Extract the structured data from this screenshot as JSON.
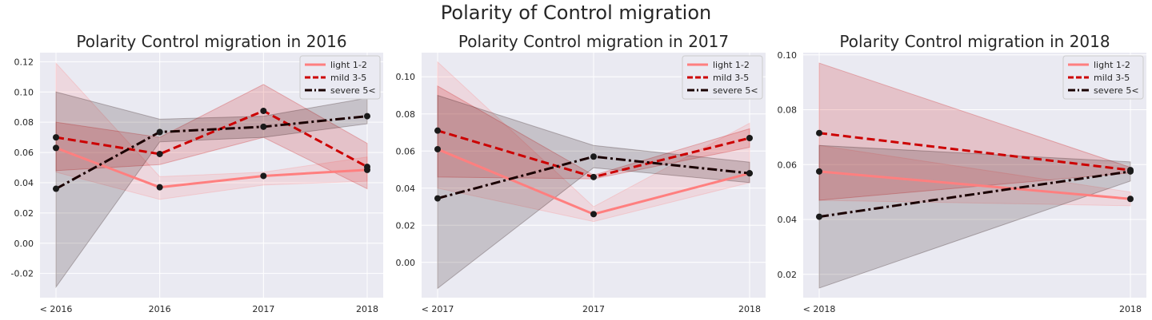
{
  "suptitle": "Polarity of Control migration",
  "style": {
    "axes_bg": "#eaeaf2",
    "grid": "#ffffff",
    "series_colors": {
      "light 1-2": "#ff7f7f",
      "mild 3-5": "#cc0000",
      "severe 5<": "#1a0000"
    },
    "marker_color": "#1a1a1a",
    "line_styles": {
      "light 1-2": "solid",
      "mild 3-5": "dashed",
      "severe 5<": "dashdot"
    },
    "legend_position": "top-right"
  },
  "chart_data": [
    {
      "type": "line",
      "title": "Polarity Control migration in 2016",
      "categories": [
        "< 2016",
        "2016",
        "2017",
        "2018"
      ],
      "ylim": [
        -0.036,
        0.126
      ],
      "yticks": [
        "-0.02",
        "0.00",
        "0.02",
        "0.04",
        "0.06",
        "0.08",
        "0.10",
        "0.12"
      ],
      "series": [
        {
          "name": "light 1-2",
          "values": [
            0.063,
            0.037,
            0.0445,
            0.0485
          ],
          "ci_low": [
            0.047,
            0.029,
            0.0385,
            0.041
          ],
          "ci_high": [
            0.119,
            0.044,
            0.047,
            0.057
          ]
        },
        {
          "name": "mild 3-5",
          "values": [
            0.07,
            0.059,
            0.0875,
            0.0505
          ],
          "ci_low": [
            0.048,
            0.052,
            0.07,
            0.036
          ],
          "ci_high": [
            0.08,
            0.07,
            0.105,
            0.066
          ]
        },
        {
          "name": "severe 5<",
          "values": [
            0.036,
            0.0735,
            0.077,
            0.084
          ],
          "ci_low": [
            -0.029,
            0.067,
            0.07,
            0.079
          ],
          "ci_high": [
            0.1,
            0.082,
            0.084,
            0.096
          ]
        }
      ]
    },
    {
      "type": "line",
      "title": "Polarity Control migration in 2017",
      "categories": [
        "< 2017",
        "2017",
        "2018"
      ],
      "ylim": [
        -0.019,
        0.113
      ],
      "yticks": [
        "0.00",
        "0.02",
        "0.04",
        "0.06",
        "0.08",
        "0.10"
      ],
      "series": [
        {
          "name": "light 1-2",
          "values": [
            0.061,
            0.026,
            0.048
          ],
          "ci_low": [
            0.04,
            0.022,
            0.043
          ],
          "ci_high": [
            0.108,
            0.03,
            0.075
          ]
        },
        {
          "name": "mild 3-5",
          "values": [
            0.071,
            0.046,
            0.067
          ],
          "ci_low": [
            0.046,
            0.045,
            0.062
          ],
          "ci_high": [
            0.095,
            0.047,
            0.072
          ]
        },
        {
          "name": "severe 5<",
          "values": [
            0.0345,
            0.057,
            0.048
          ],
          "ci_low": [
            -0.014,
            0.051,
            0.043
          ],
          "ci_high": [
            0.09,
            0.063,
            0.054
          ]
        }
      ]
    },
    {
      "type": "line",
      "title": "Polarity Control migration in 2018",
      "categories": [
        "< 2018",
        "2018"
      ],
      "ylim": [
        0.0115,
        0.1008
      ],
      "yticks": [
        "0.02",
        "0.04",
        "0.06",
        "0.08",
        "0.10"
      ],
      "series": [
        {
          "name": "light 1-2",
          "values": [
            0.0575,
            0.0475
          ],
          "ci_low": [
            0.047,
            0.045
          ],
          "ci_high": [
            0.067,
            0.05
          ]
        },
        {
          "name": "mild 3-5",
          "values": [
            0.0715,
            0.058
          ],
          "ci_low": [
            0.047,
            0.057
          ],
          "ci_high": [
            0.097,
            0.059
          ]
        },
        {
          "name": "severe 5<",
          "values": [
            0.041,
            0.0575
          ],
          "ci_low": [
            0.015,
            0.054
          ],
          "ci_high": [
            0.067,
            0.061
          ]
        }
      ]
    }
  ]
}
